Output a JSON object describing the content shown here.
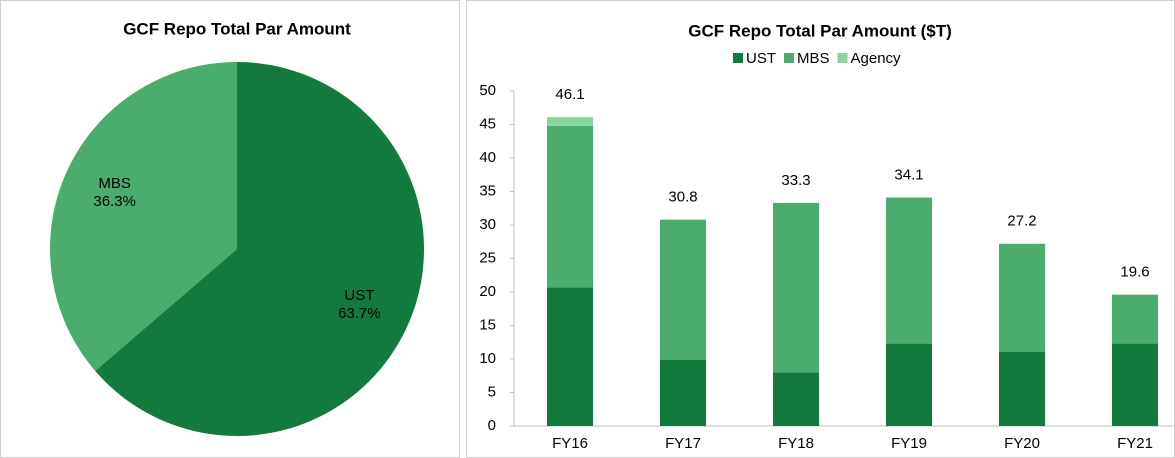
{
  "chart_data": [
    {
      "type": "pie",
      "title": "GCF Repo Total Par Amount",
      "categories": [
        "UST",
        "MBS"
      ],
      "values": [
        63.7,
        36.3
      ],
      "value_labels": [
        "63.7%",
        "36.3%"
      ],
      "colors": [
        "#127a3c",
        "#4aad6e"
      ]
    },
    {
      "type": "stacked_bar",
      "title": "GCF Repo Total Par Amount ($T)",
      "categories": [
        "FY16",
        "FY17",
        "FY18",
        "FY19",
        "FY20",
        "FY21"
      ],
      "series": [
        {
          "name": "UST",
          "color": "#127a3c",
          "values": [
            20.7,
            9.9,
            8.0,
            12.3,
            11.1,
            12.3
          ]
        },
        {
          "name": "MBS",
          "color": "#4aad6e",
          "values": [
            24.1,
            20.9,
            25.3,
            21.8,
            16.1,
            7.3
          ]
        },
        {
          "name": "Agency",
          "color": "#86d49e",
          "values": [
            1.3,
            0,
            0,
            0,
            0,
            0
          ]
        }
      ],
      "totals": [
        46.1,
        30.8,
        33.3,
        34.1,
        27.2,
        19.6
      ],
      "ylim": [
        0,
        50
      ],
      "yticks": [
        0,
        5,
        10,
        15,
        20,
        25,
        30,
        35,
        40,
        45,
        50
      ],
      "legend": "top"
    }
  ]
}
